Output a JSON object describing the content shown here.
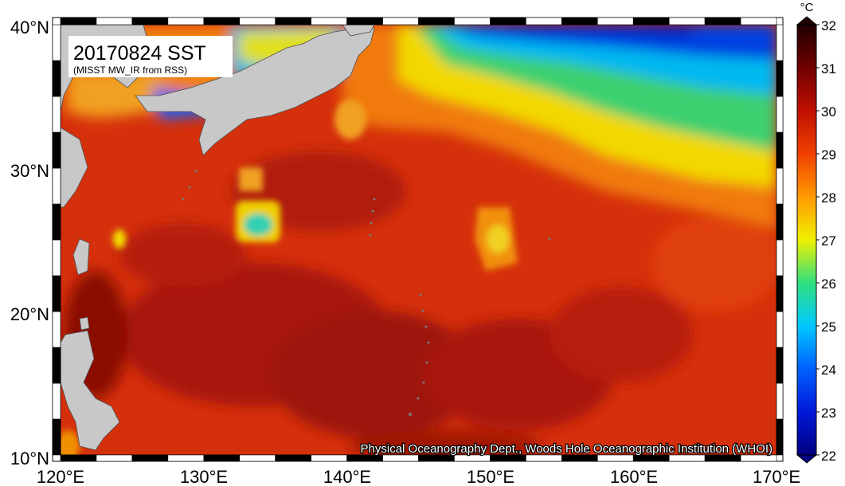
{
  "map": {
    "title": "20170824 SST",
    "subtitle": "(MISST MW_IR from RSS)",
    "credit": "Physical Oceanography Dept., Woods Hole Oceanographic Institution (WHOI)",
    "lat_labels": [
      "40°N",
      "30°N",
      "20°N",
      "10°N"
    ],
    "lon_labels": [
      "120°E",
      "130°E",
      "140°E",
      "150°E",
      "160°E",
      "170°E"
    ],
    "lat_range": [
      10,
      40
    ],
    "lon_range": [
      120,
      170
    ]
  },
  "colorbar": {
    "unit": "°C",
    "min": 22,
    "max": 32,
    "tick_labels": [
      "32",
      "31",
      "30",
      "29",
      "28",
      "27",
      "26",
      "25",
      "24",
      "23",
      "22"
    ],
    "stops": [
      {
        "value": 22,
        "color": "#000080"
      },
      {
        "value": 23,
        "color": "#0018d8"
      },
      {
        "value": 24,
        "color": "#0060ff"
      },
      {
        "value": 25,
        "color": "#00c8ff"
      },
      {
        "value": 26,
        "color": "#30e080"
      },
      {
        "value": 27,
        "color": "#f0f000"
      },
      {
        "value": 28,
        "color": "#ff9a00"
      },
      {
        "value": 29,
        "color": "#f04000"
      },
      {
        "value": 30,
        "color": "#c01000"
      },
      {
        "value": 31,
        "color": "#700000"
      },
      {
        "value": 32,
        "color": "#200000"
      }
    ]
  },
  "colors": {
    "land": "#c8c8c8",
    "ocean_warm": "#d22a0a",
    "ocean_dark": "#a01005",
    "frame": "#000000"
  }
}
